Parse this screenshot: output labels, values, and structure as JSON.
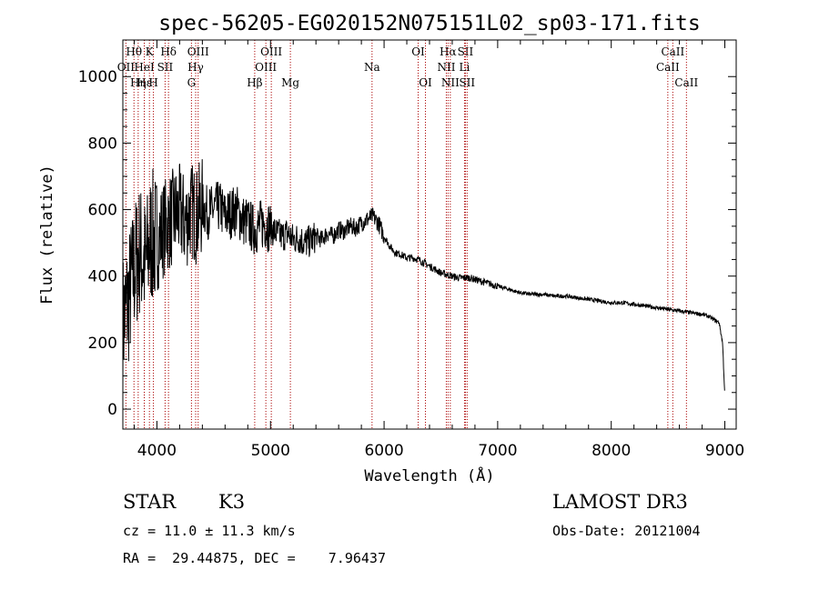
{
  "chart_data": {
    "type": "line",
    "title": "spec-56205-EG020152N075151L02_sp03-171.fits",
    "xlabel": "Wavelength (Å)",
    "ylabel": "Flux (relative)",
    "xlim": [
      3700,
      9100
    ],
    "ylim": [
      -60,
      1110
    ],
    "xticks": [
      4000,
      5000,
      6000,
      7000,
      8000,
      9000
    ],
    "yticks": [
      0,
      200,
      400,
      600,
      800,
      1000
    ],
    "grid": false,
    "series": [
      {
        "name": "flux",
        "x": [
          3700,
          3750,
          3800,
          3850,
          3900,
          3950,
          4000,
          4050,
          4100,
          4150,
          4200,
          4250,
          4300,
          4350,
          4400,
          4450,
          4500,
          4550,
          4600,
          4650,
          4700,
          4750,
          4800,
          4850,
          4900,
          4950,
          5000,
          5050,
          5100,
          5150,
          5200,
          5250,
          5300,
          5350,
          5400,
          5450,
          5500,
          5550,
          5600,
          5650,
          5700,
          5750,
          5800,
          5850,
          5900,
          5950,
          6000,
          6050,
          6100,
          6150,
          6200,
          6250,
          6300,
          6350,
          6400,
          6450,
          6500,
          6550,
          6600,
          6650,
          6700,
          6750,
          6800,
          6850,
          6900,
          6950,
          7000,
          7100,
          7200,
          7300,
          7400,
          7500,
          7600,
          7700,
          7800,
          7900,
          8000,
          8100,
          8200,
          8300,
          8400,
          8500,
          8600,
          8700,
          8800,
          8850,
          8900,
          8950,
          8980,
          9000
        ],
        "values": [
          260,
          330,
          420,
          480,
          430,
          520,
          500,
          540,
          560,
          580,
          590,
          560,
          600,
          580,
          610,
          590,
          600,
          610,
          580,
          590,
          600,
          570,
          560,
          540,
          550,
          560,
          545,
          530,
          520,
          530,
          510,
          515,
          500,
          505,
          520,
          510,
          530,
          520,
          540,
          535,
          550,
          545,
          560,
          570,
          580,
          560,
          520,
          490,
          470,
          465,
          455,
          455,
          450,
          440,
          430,
          420,
          410,
          405,
          400,
          395,
          395,
          395,
          390,
          385,
          380,
          375,
          370,
          360,
          350,
          345,
          345,
          340,
          340,
          335,
          330,
          325,
          320,
          320,
          315,
          310,
          305,
          300,
          295,
          290,
          285,
          280,
          270,
          260,
          200,
          40
        ]
      }
    ],
    "line_markers": [
      {
        "label": "Hθ",
        "x": 3798,
        "row": 1
      },
      {
        "label": "OII",
        "x": 3727,
        "row": 2
      },
      {
        "label": "Hη",
        "x": 3835,
        "row": 3
      },
      {
        "label": "Hε",
        "x": 3889,
        "row": 3
      },
      {
        "label": "K",
        "x": 3934,
        "row": 1
      },
      {
        "label": "HeI",
        "x": 3889,
        "row": 2
      },
      {
        "label": "SII",
        "x": 4072,
        "row": 2
      },
      {
        "label": "H",
        "x": 3969,
        "row": 3
      },
      {
        "label": "Hδ",
        "x": 4102,
        "row": 1
      },
      {
        "label": "OIII",
        "x": 4363,
        "row": 1
      },
      {
        "label": "Hγ",
        "x": 4341,
        "row": 2
      },
      {
        "label": "G",
        "x": 4304,
        "row": 3
      },
      {
        "label": "Hβ",
        "x": 4861,
        "row": 3
      },
      {
        "label": "OIII",
        "x": 5007,
        "row": 1
      },
      {
        "label": "OIII",
        "x": 4959,
        "row": 2
      },
      {
        "label": "Mg",
        "x": 5175,
        "row": 3
      },
      {
        "label": "Na",
        "x": 5894,
        "row": 2
      },
      {
        "label": "OI",
        "x": 6300,
        "row": 1
      },
      {
        "label": "OI",
        "x": 6364,
        "row": 3
      },
      {
        "label": "Hα",
        "x": 6563,
        "row": 1
      },
      {
        "label": "NII",
        "x": 6548,
        "row": 2
      },
      {
        "label": "NII",
        "x": 6583,
        "row": 3
      },
      {
        "label": "SII",
        "x": 6716,
        "row": 1
      },
      {
        "label": "Li",
        "x": 6708,
        "row": 2
      },
      {
        "label": "SII",
        "x": 6731,
        "row": 3
      },
      {
        "label": "CaII",
        "x": 8542,
        "row": 1
      },
      {
        "label": "CaII",
        "x": 8498,
        "row": 2
      },
      {
        "label": "CaII",
        "x": 8662,
        "row": 3
      }
    ]
  },
  "info": {
    "object_class": "STAR",
    "subclass": "K3",
    "survey": "LAMOST DR3",
    "cz": "cz = 11.0 ± 11.3 km/s",
    "obs_date": "Obs-Date: 20121004",
    "coords": "RA =  29.44875, DEC =    7.96437"
  },
  "colors": {
    "marker_line": "#aa0000",
    "spectrum": "#000000",
    "background": "#ffffff"
  }
}
